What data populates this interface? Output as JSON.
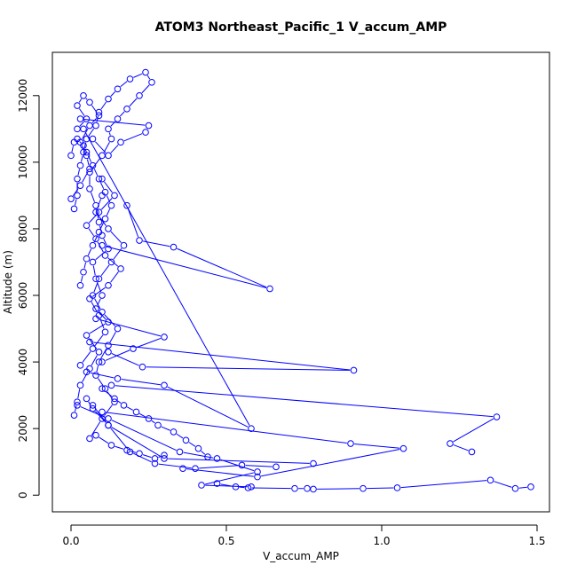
{
  "chart_data": {
    "type": "line",
    "title": "ATOM3 Northeast_Pacific_1 V_accum_AMP",
    "xlabel": "V_accum_AMP",
    "ylabel": "Altitude (m)",
    "xlim": [
      -0.06,
      1.54
    ],
    "ylim": [
      -500,
      13300
    ],
    "xticks": [
      {
        "value": 0.0,
        "label": "0.0"
      },
      {
        "value": 0.5,
        "label": "0.5"
      },
      {
        "value": 1.0,
        "label": "1.0"
      },
      {
        "value": 1.5,
        "label": "1.5"
      }
    ],
    "yticks": [
      {
        "value": 0,
        "label": "0"
      },
      {
        "value": 2000,
        "label": "2000"
      },
      {
        "value": 4000,
        "label": "4000"
      },
      {
        "value": 6000,
        "label": "6000"
      },
      {
        "value": 8000,
        "label": "8000"
      },
      {
        "value": 10000,
        "label": "10000"
      },
      {
        "value": 12000,
        "label": "12000"
      }
    ],
    "grid": false,
    "legend": "none",
    "color": "#0000ff",
    "marker": "open-circle",
    "series": [
      {
        "x": [
          0.01,
          0.02,
          0.03,
          0.06,
          0.09,
          0.05,
          0.12,
          0.08,
          0.1,
          0.08,
          0.07,
          0.12,
          0.1,
          0.09,
          0.08,
          0.06,
          0.06,
          0.1,
          0.13,
          0.12,
          0.15,
          0.18,
          0.22,
          0.26,
          0.24,
          0.19,
          0.15,
          0.12,
          0.09,
          0.08,
          0.05,
          0.04,
          0.03,
          0.02,
          0.02,
          0.01
        ],
        "y": [
          2400,
          2800,
          3300,
          3800,
          4300,
          4800,
          5200,
          5600,
          6000,
          6500,
          7000,
          7400,
          7800,
          8200,
          8700,
          9200,
          9700,
          10200,
          10700,
          11000,
          11300,
          11600,
          12000,
          12400,
          12700,
          12500,
          12200,
          11900,
          11500,
          11100,
          10700,
          10300,
          9900,
          9500,
          9000,
          8600
        ]
      },
      {
        "x": [
          0.47,
          0.53,
          0.57,
          0.72,
          0.76,
          0.78,
          0.94,
          1.05,
          1.35,
          1.43,
          1.48
        ],
        "y": [
          350,
          250,
          220,
          200,
          200,
          180,
          200,
          220,
          450,
          200,
          250
        ]
      },
      {
        "x": [
          0.78,
          0.3,
          0.12,
          0.07,
          0.05
        ],
        "y": [
          950,
          1100,
          2100,
          2600,
          2900
        ]
      },
      {
        "x": [
          0.13,
          1.37,
          1.22,
          1.29
        ],
        "y": [
          3300,
          2350,
          1550,
          1300
        ]
      },
      {
        "x": [
          0.1,
          0.9,
          1.07,
          0.6,
          0.36
        ],
        "y": [
          2500,
          1550,
          1400,
          550,
          800
        ]
      },
      {
        "x": [
          0.06,
          0.91,
          0.23,
          0.12
        ],
        "y": [
          4600,
          3750,
          3850,
          4300
        ]
      },
      {
        "x": [
          0.08,
          0.3,
          0.2,
          0.1
        ],
        "y": [
          5300,
          4750,
          4400,
          4000
        ]
      },
      {
        "x": [
          0.1,
          0.64,
          0.33,
          0.22,
          0.18
        ],
        "y": [
          7500,
          6200,
          7450,
          7650,
          8700
        ]
      },
      {
        "x": [
          0.04,
          0.58,
          0.3,
          0.15,
          0.05
        ],
        "y": [
          11000,
          2000,
          3300,
          3500,
          3700
        ]
      },
      {
        "x": [
          0.03,
          0.25,
          0.24,
          0.16,
          0.12,
          0.07
        ],
        "y": [
          11300,
          11100,
          10900,
          10600,
          10200,
          10700
        ]
      },
      {
        "x": [
          0.02,
          0.12,
          0.35,
          0.47,
          0.6,
          0.42,
          0.58
        ],
        "y": [
          2700,
          2300,
          1300,
          1100,
          700,
          300,
          250
        ]
      },
      {
        "x": [
          0.07,
          0.12,
          0.19,
          0.27,
          0.4,
          0.55,
          0.66
        ],
        "y": [
          2700,
          2100,
          1300,
          950,
          800,
          900,
          850
        ]
      },
      {
        "x": [
          0.06,
          0.1,
          0.14,
          0.11,
          0.08,
          0.09,
          0.12,
          0.15,
          0.1,
          0.07,
          0.09,
          0.13,
          0.17,
          0.12,
          0.08,
          0.1
        ],
        "y": [
          1700,
          2300,
          2800,
          3200,
          3600,
          4000,
          4500,
          5000,
          5500,
          6000,
          6500,
          7000,
          7500,
          8000,
          8500,
          9000
        ]
      },
      {
        "x": [
          0.03,
          0.07,
          0.11,
          0.09,
          0.06,
          0.12,
          0.16,
          0.11,
          0.08,
          0.05,
          0.09,
          0.14,
          0.1
        ],
        "y": [
          3900,
          4400,
          4900,
          5400,
          5900,
          6300,
          6800,
          7200,
          7700,
          8100,
          8500,
          9000,
          9500
        ]
      },
      {
        "x": [
          0.0,
          0.03,
          0.06,
          0.05,
          0.03,
          0.06,
          0.09,
          0.06,
          0.04,
          0.02,
          0.05,
          0.02
        ],
        "y": [
          8900,
          9300,
          9800,
          10200,
          10600,
          11100,
          11400,
          11800,
          12000,
          11700,
          11300,
          11000
        ]
      },
      {
        "x": [
          0.0,
          0.01,
          0.02,
          0.04,
          0.05,
          0.07,
          0.09,
          0.11,
          0.13,
          0.11,
          0.09,
          0.07,
          0.05,
          0.04,
          0.03
        ],
        "y": [
          10200,
          10600,
          10700,
          10500,
          10300,
          9900,
          9500,
          9100,
          8700,
          8300,
          7900,
          7500,
          7100,
          6700,
          6300
        ]
      },
      {
        "x": [
          0.08,
          0.13,
          0.18,
          0.22,
          0.27,
          0.3
        ],
        "y": [
          1800,
          1500,
          1350,
          1250,
          1100,
          1200
        ]
      },
      {
        "x": [
          0.1,
          0.14,
          0.17,
          0.21,
          0.25,
          0.28,
          0.33,
          0.37,
          0.41,
          0.44
        ],
        "y": [
          3200,
          2900,
          2700,
          2500,
          2300,
          2100,
          1900,
          1650,
          1400,
          1150
        ]
      }
    ]
  }
}
